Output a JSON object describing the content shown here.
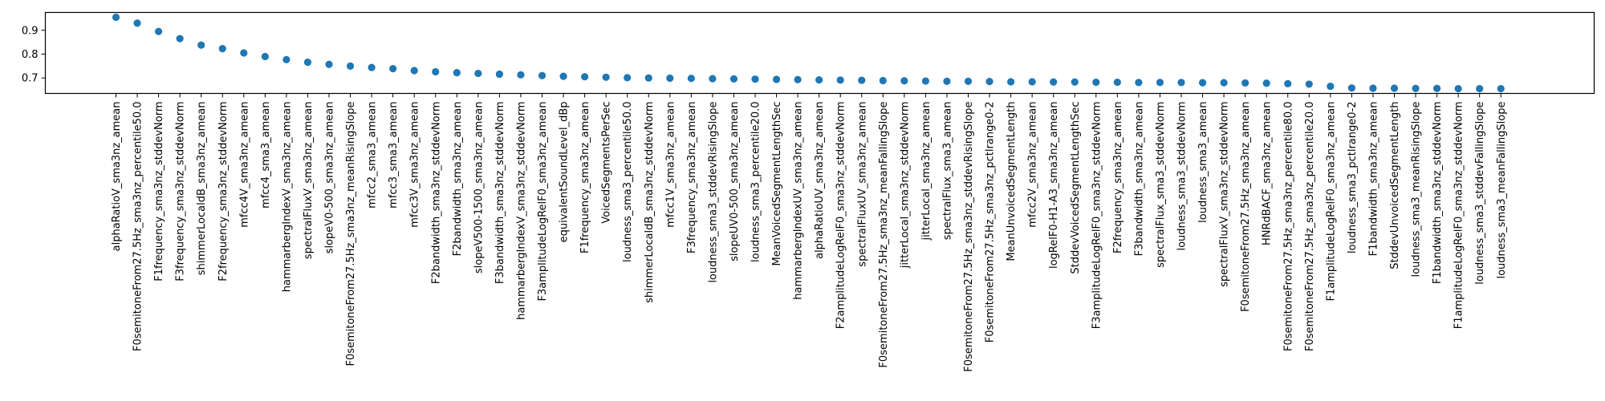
{
  "chart_data": {
    "type": "scatter",
    "color": "#1f77b4",
    "grid": false,
    "legend": "none",
    "ylim": [
      0.635,
      0.975
    ],
    "yticks": [
      0.7,
      0.8,
      0.9
    ],
    "ytick_labels": [
      "0.7",
      "0.8",
      "0.9"
    ],
    "categories": [
      "alphaRatioV_sma3nz_amean",
      "F0semitoneFrom27.5Hz_sma3nz_percentile50.0",
      "F1frequency_sma3nz_stddevNorm",
      "F3frequency_sma3nz_stddevNorm",
      "shimmerLocaldB_sma3nz_amean",
      "F2frequency_sma3nz_stddevNorm",
      "mfcc4V_sma3nz_amean",
      "mfcc4_sma3_amean",
      "hammarbergIndexV_sma3nz_amean",
      "spectralFluxV_sma3nz_amean",
      "slopeV0-500_sma3nz_amean",
      "F0semitoneFrom27.5Hz_sma3nz_meanRisingSlope",
      "mfcc2_sma3_amean",
      "mfcc3_sma3_amean",
      "mfcc3V_sma3nz_amean",
      "F2bandwidth_sma3nz_stddevNorm",
      "F2bandwidth_sma3nz_amean",
      "slopeV500-1500_sma3nz_amean",
      "F3bandwidth_sma3nz_stddevNorm",
      "hammarbergIndexV_sma3nz_stddevNorm",
      "F3amplitudeLogRelF0_sma3nz_amean",
      "equivalentSoundLevel_dBp",
      "F1frequency_sma3nz_amean",
      "VoicedSegmentsPerSec",
      "loudness_sma3_percentile50.0",
      "shimmerLocaldB_sma3nz_stddevNorm",
      "mfcc1V_sma3nz_amean",
      "F3frequency_sma3nz_amean",
      "loudness_sma3_stddevRisingSlope",
      "slopeUV0-500_sma3nz_amean",
      "loudness_sma3_percentile20.0",
      "MeanVoicedSegmentLengthSec",
      "hammarbergIndexUV_sma3nz_amean",
      "alphaRatioUV_sma3nz_amean",
      "F2amplitudeLogRelF0_sma3nz_stddevNorm",
      "spectralFluxUV_sma3nz_amean",
      "F0semitoneFrom27.5Hz_sma3nz_meanFallingSlope",
      "jitterLocal_sma3nz_stddevNorm",
      "jitterLocal_sma3nz_amean",
      "spectralFlux_sma3_amean",
      "F0semitoneFrom27.5Hz_sma3nz_stddevRisingSlope",
      "F0semitoneFrom27.5Hz_sma3nz_pctlrange0-2",
      "MeanUnvoicedSegmentLength",
      "mfcc2V_sma3nz_amean",
      "logRelF0-H1-A3_sma3nz_amean",
      "StddevVoicedSegmentLengthSec",
      "F3amplitudeLogRelF0_sma3nz_stddevNorm",
      "F2frequency_sma3nz_amean",
      "F3bandwidth_sma3nz_amean",
      "spectralFlux_sma3_stddevNorm",
      "loudness_sma3_stddevNorm",
      "loudness_sma3_amean",
      "spectralFluxV_sma3nz_stddevNorm",
      "F0semitoneFrom27.5Hz_sma3nz_amean",
      "HNRdBACF_sma3nz_amean",
      "F0semitoneFrom27.5Hz_sma3nz_percentile80.0",
      "F0semitoneFrom27.5Hz_sma3nz_percentile20.0",
      "F1amplitudeLogRelF0_sma3nz_amean",
      "loudness_sma3_pctlrange0-2",
      "F1bandwidth_sma3nz_amean",
      "StddevUnvoicedSegmentLength",
      "loudness_sma3_meanRisingSlope",
      "F1bandwidth_sma3nz_stddevNorm",
      "F1amplitudeLogRelF0_sma3nz_stddevNorm",
      "loudness_sma3_stddevFallingSlope",
      "loudness_sma3_meanFallingSlope"
    ],
    "values": [
      0.955,
      0.93,
      0.895,
      0.865,
      0.838,
      0.823,
      0.805,
      0.79,
      0.777,
      0.766,
      0.757,
      0.75,
      0.744,
      0.739,
      0.731,
      0.726,
      0.722,
      0.719,
      0.716,
      0.713,
      0.71,
      0.707,
      0.705,
      0.703,
      0.701,
      0.7,
      0.699,
      0.698,
      0.697,
      0.696,
      0.695,
      0.694,
      0.693,
      0.692,
      0.691,
      0.69,
      0.689,
      0.688,
      0.687,
      0.686,
      0.686,
      0.685,
      0.684,
      0.684,
      0.683,
      0.683,
      0.682,
      0.682,
      0.681,
      0.681,
      0.681,
      0.68,
      0.68,
      0.679,
      0.678,
      0.676,
      0.674,
      0.665,
      0.658,
      0.657,
      0.657,
      0.656,
      0.656,
      0.655,
      0.655,
      0.655
    ]
  }
}
